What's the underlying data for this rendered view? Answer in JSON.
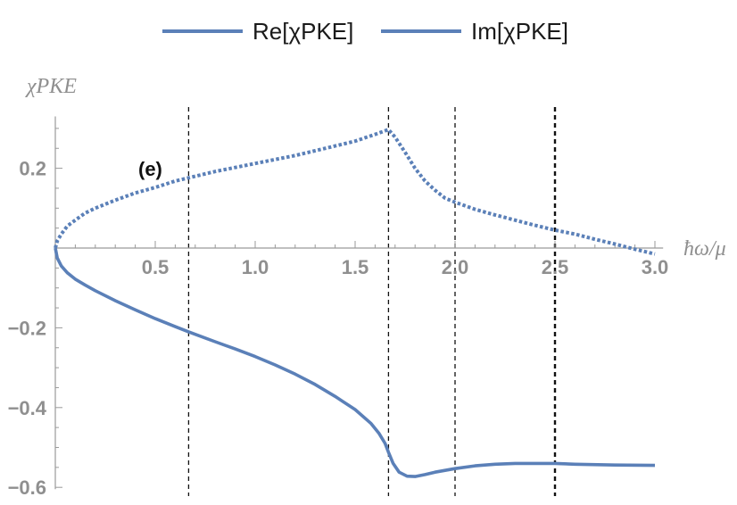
{
  "chart_data": {
    "type": "line",
    "xlabel": "ħω/μ",
    "ylabel": "χPKE",
    "panel_label": "(e)",
    "xlim": [
      0,
      3.05
    ],
    "ylim": [
      -0.6,
      0.33
    ],
    "x_ticks": [
      "0.5",
      "1.0",
      "1.5",
      "2.0",
      "2.5",
      "3.0"
    ],
    "y_ticks": [
      "0.2",
      "−0.2",
      "−0.4",
      "−0.6"
    ],
    "legend": {
      "position": "top-center"
    },
    "vlines": [
      0.667,
      1.667,
      2.0,
      2.5
    ],
    "series": [
      {
        "name": "Re[χPKE]",
        "style": "solid",
        "color": "#5b80b8",
        "points": [
          [
            0,
            0
          ],
          [
            0.01,
            -0.025
          ],
          [
            0.03,
            -0.045
          ],
          [
            0.06,
            -0.062
          ],
          [
            0.1,
            -0.078
          ],
          [
            0.15,
            -0.093
          ],
          [
            0.2,
            -0.107
          ],
          [
            0.3,
            -0.132
          ],
          [
            0.4,
            -0.155
          ],
          [
            0.5,
            -0.177
          ],
          [
            0.6,
            -0.197
          ],
          [
            0.667,
            -0.21
          ],
          [
            0.8,
            -0.235
          ],
          [
            0.9,
            -0.253
          ],
          [
            1.0,
            -0.272
          ],
          [
            1.1,
            -0.293
          ],
          [
            1.2,
            -0.316
          ],
          [
            1.3,
            -0.342
          ],
          [
            1.4,
            -0.372
          ],
          [
            1.5,
            -0.405
          ],
          [
            1.58,
            -0.44
          ],
          [
            1.62,
            -0.465
          ],
          [
            1.65,
            -0.49
          ],
          [
            1.667,
            -0.512
          ],
          [
            1.69,
            -0.54
          ],
          [
            1.72,
            -0.562
          ],
          [
            1.76,
            -0.572
          ],
          [
            1.8,
            -0.573
          ],
          [
            1.85,
            -0.568
          ],
          [
            1.9,
            -0.562
          ],
          [
            2.0,
            -0.553
          ],
          [
            2.1,
            -0.546
          ],
          [
            2.2,
            -0.542
          ],
          [
            2.3,
            -0.54
          ],
          [
            2.4,
            -0.54
          ],
          [
            2.5,
            -0.54
          ],
          [
            2.6,
            -0.542
          ],
          [
            2.8,
            -0.544
          ],
          [
            3.0,
            -0.545
          ]
        ]
      },
      {
        "name": "Im[χPKE]",
        "style": "dotted",
        "color": "#5b80b8",
        "points": [
          [
            0,
            0
          ],
          [
            0.01,
            0.018
          ],
          [
            0.03,
            0.035
          ],
          [
            0.06,
            0.055
          ],
          [
            0.1,
            0.07
          ],
          [
            0.15,
            0.088
          ],
          [
            0.2,
            0.1
          ],
          [
            0.3,
            0.12
          ],
          [
            0.4,
            0.138
          ],
          [
            0.5,
            0.152
          ],
          [
            0.6,
            0.168
          ],
          [
            0.667,
            0.176
          ],
          [
            0.8,
            0.192
          ],
          [
            1.0,
            0.212
          ],
          [
            1.2,
            0.232
          ],
          [
            1.4,
            0.256
          ],
          [
            1.5,
            0.268
          ],
          [
            1.6,
            0.285
          ],
          [
            1.667,
            0.297
          ],
          [
            1.7,
            0.278
          ],
          [
            1.75,
            0.24
          ],
          [
            1.8,
            0.2
          ],
          [
            1.85,
            0.168
          ],
          [
            1.9,
            0.145
          ],
          [
            1.95,
            0.125
          ],
          [
            2.0,
            0.115
          ],
          [
            2.1,
            0.097
          ],
          [
            2.2,
            0.083
          ],
          [
            2.3,
            0.07
          ],
          [
            2.4,
            0.057
          ],
          [
            2.5,
            0.045
          ],
          [
            2.6,
            0.035
          ],
          [
            2.7,
            0.022
          ],
          [
            2.8,
            0.01
          ],
          [
            2.9,
            -0.003
          ],
          [
            3.0,
            -0.015
          ]
        ]
      }
    ]
  }
}
